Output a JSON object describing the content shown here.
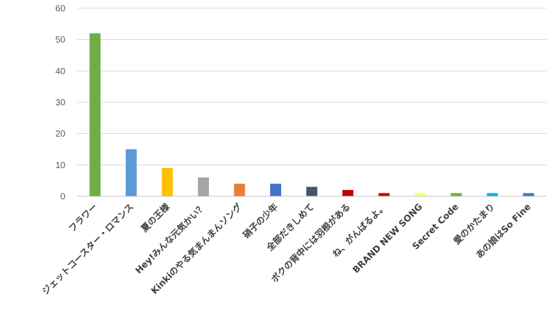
{
  "chart_data": {
    "type": "bar",
    "title": "",
    "xlabel": "",
    "ylabel": "",
    "ylim": [
      0,
      60
    ],
    "yticks": [
      0,
      10,
      20,
      30,
      40,
      50,
      60
    ],
    "grid": true,
    "legend": "none",
    "categories": [
      "フラワー",
      "ジェットコースター・ロマンス",
      "夏の王様",
      "Hey!みんな元気かい？",
      "Kinkiのやる気まんまんソング",
      "硝子の少年",
      "全部だきしめて",
      "ボクの背中には羽根がある",
      "ね、がんばるよ。",
      "BRAND NEW SONG",
      "Secret Code",
      "愛のかたまり",
      "あの娘はSo Fine"
    ],
    "values": [
      52,
      15,
      9,
      6,
      4,
      4,
      3,
      2,
      1,
      1,
      1,
      1,
      1
    ],
    "colors": [
      "#70ad47",
      "#5b9bd5",
      "#ffc000",
      "#a5a5a5",
      "#ed7d31",
      "#4472c4",
      "#44546a",
      "#c00000",
      "#c00000",
      "#ffff66",
      "#70ad47",
      "#00b0f0",
      "#4472c4"
    ]
  }
}
